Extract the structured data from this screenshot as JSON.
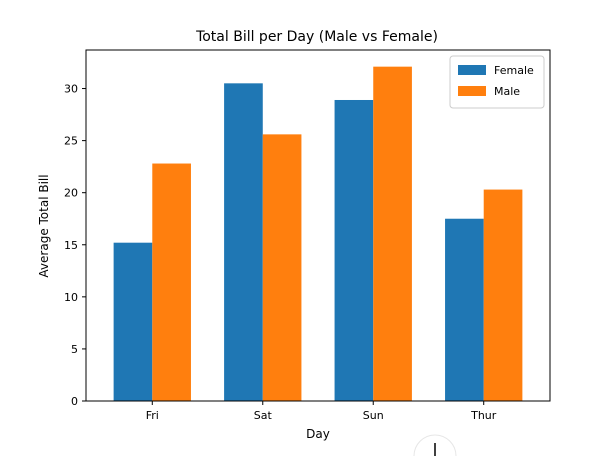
{
  "chart_data": {
    "type": "bar",
    "title": "Total Bill per Day (Male vs Female)",
    "xlabel": "Day",
    "ylabel": "Average Total Bill",
    "categories": [
      "Fri",
      "Sat",
      "Sun",
      "Thur"
    ],
    "series": [
      {
        "name": "Female",
        "color": "#1f77b4",
        "values": [
          15.2,
          30.5,
          28.9,
          17.5
        ]
      },
      {
        "name": "Male",
        "color": "#ff7f0e",
        "values": [
          22.8,
          25.6,
          32.1,
          20.3
        ]
      }
    ],
    "ylim": [
      0,
      33.7
    ],
    "yticks": [
      0,
      5,
      10,
      15,
      20,
      25,
      30
    ],
    "grid": false,
    "legend_position": "top-right"
  }
}
